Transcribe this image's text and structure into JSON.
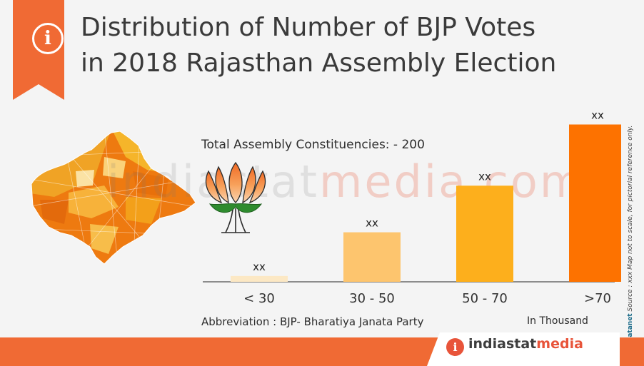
{
  "title": {
    "line1": "Distribution of Number of BJP Votes",
    "line2": "in 2018 Rajasthan Assembly Election"
  },
  "total_label": "Total Assembly Constituencies: - 200",
  "abbreviation": {
    "label": "Abbreviation",
    "separator": ":",
    "text": "BJP- Bharatiya Janata Party"
  },
  "unit_note": "In Thousand",
  "side_note": {
    "brand": "Datanet",
    "text": "Source : xxx  Map not to scale, for pictorial reference only."
  },
  "watermark": {
    "part1": "indiastat",
    "part2": "media",
    "part3": ".com"
  },
  "brand": {
    "name_part1": "indiastat",
    "name_part2": "media"
  },
  "icons": {
    "info": "info-icon",
    "map": "rajasthan-map",
    "symbol": "lotus-symbol"
  },
  "colors": {
    "accent": "#f06a34",
    "title_text": "#3a3a3a",
    "bar_colors": [
      "#fce8c4",
      "#fdc56e",
      "#fdaf1c",
      "#fd7200"
    ],
    "axis": "#6a6a6a"
  },
  "chart_data": {
    "type": "bar",
    "categories": [
      "< 30",
      "30 - 50",
      "50 - 70",
      ">70"
    ],
    "values": [
      2,
      17,
      33,
      54
    ],
    "data_labels": [
      "xx",
      "xx",
      "xx",
      "xx"
    ],
    "values_note": "values estimated from bar heights; no y-axis ticks shown",
    "ylim": [
      0,
      60
    ],
    "grid": false,
    "legend": "none"
  }
}
